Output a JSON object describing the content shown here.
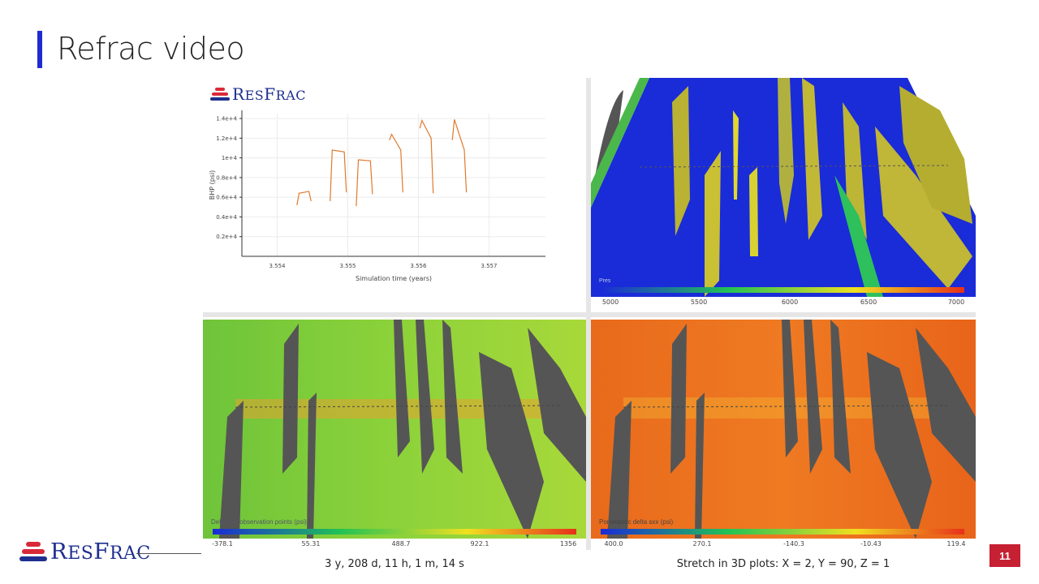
{
  "slide": {
    "title": "Refrac video",
    "page_number": "11",
    "time_readout": "3 y, 208 d, 11 h, 1 m, 14 s",
    "stretch_note": "Stretch in 3D plots: X = 2, Y = 90, Z = 1"
  },
  "logo": {
    "text_cap": "R",
    "text_rest1": "ES",
    "text_cap2": "F",
    "text_rest2": "RAC"
  },
  "colors": {
    "accent": "#1f2bd1",
    "page_badge": "#c62033",
    "logo_blue": "#1e2f8f",
    "logo_red": "#d92a3a",
    "line": "#e07a2e"
  },
  "chart_data": {
    "type": "line",
    "xlabel": "Simulation time (years)",
    "ylabel": "BHP (psi)",
    "xlim": [
      3.5535,
      3.5578
    ],
    "ylim": [
      0,
      14500
    ],
    "xticks": [
      "3.554",
      "3.555",
      "3.556",
      "3.557"
    ],
    "xtick_values": [
      3.554,
      3.555,
      3.556,
      3.557
    ],
    "yticks": [
      "0.2e+4",
      "0.4e+4",
      "0.6e+4",
      "0.8e+4",
      "1e+4",
      "1.2e+4",
      "1.4e+4"
    ],
    "ytick_values": [
      2000,
      4000,
      6000,
      8000,
      10000,
      12000,
      14000
    ],
    "series": [
      {
        "name": "BHP",
        "segments": [
          {
            "x": [
              3.55428,
              3.55431,
              3.55445,
              3.55448
            ],
            "y": [
              5200,
              6400,
              6600,
              5600
            ]
          },
          {
            "x": [
              3.55475,
              3.55478,
              3.55495,
              3.55498
            ],
            "y": [
              5600,
              10800,
              10600,
              6500
            ]
          },
          {
            "x": [
              3.55512,
              3.55515,
              3.55532,
              3.55535
            ],
            "y": [
              5100,
              9800,
              9700,
              6300
            ]
          },
          {
            "x": [
              3.55559,
              3.55562,
              3.55575,
              3.55578
            ],
            "y": [
              11800,
              12400,
              10800,
              6500
            ]
          },
          {
            "x": [
              3.55602,
              3.55605,
              3.55618,
              3.55621
            ],
            "y": [
              13000,
              13800,
              12000,
              6400
            ]
          },
          {
            "x": [
              3.55648,
              3.55651,
              3.55665,
              3.55668
            ],
            "y": [
              11800,
              13900,
              10800,
              6500
            ]
          }
        ]
      }
    ]
  },
  "panels": {
    "top_right": {
      "label": "Pres",
      "cb_ticks": [
        "5000",
        "5500",
        "6000",
        "6500",
        "7000"
      ]
    },
    "bottom_left": {
      "label": "Delta sxx observation points (psi)",
      "cb_ticks": [
        "-378.1",
        "55.31",
        "488.7",
        "922.1",
        "1356"
      ]
    },
    "bottom_right": {
      "label": "Poroelastic delta sxx (psi)",
      "cb_ticks": [
        "400.0",
        "270.1",
        "-140.3",
        "-10.43",
        "119.4"
      ]
    }
  }
}
